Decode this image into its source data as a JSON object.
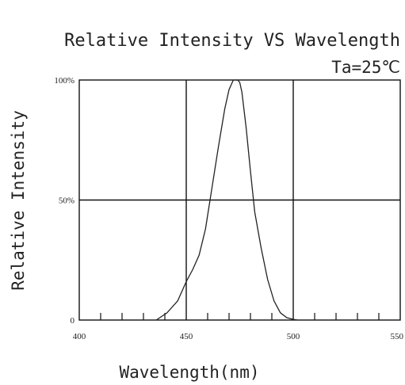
{
  "chart_data": {
    "type": "line",
    "title": "Relative Intensity VS Wavelength",
    "condition": "Ta=25℃",
    "xlabel": "Wavelength(nm)",
    "ylabel": "Relative Intensity",
    "xlim": [
      400,
      550
    ],
    "ylim": [
      0,
      100
    ],
    "x_ticks": [
      400,
      450,
      500,
      550
    ],
    "y_ticks": [
      {
        "value": 0,
        "label": "0"
      },
      {
        "value": 50,
        "label": "50%"
      },
      {
        "value": 100,
        "label": "100%"
      }
    ],
    "x_minor_step": 10,
    "grid": true,
    "series": [
      {
        "x": [
          436,
          441,
          446,
          450,
          453,
          456,
          459,
          462,
          465,
          468,
          470,
          472,
          474,
          475,
          476,
          478,
          480,
          482,
          485,
          488,
          491,
          494,
          497,
          500,
          502
        ],
        "y": [
          0,
          3,
          8,
          16,
          21,
          27,
          38,
          55,
          72,
          88,
          96,
          100,
          100,
          99,
          95,
          80,
          62,
          45,
          30,
          17,
          8,
          3,
          1,
          0.3,
          0
        ]
      }
    ]
  }
}
